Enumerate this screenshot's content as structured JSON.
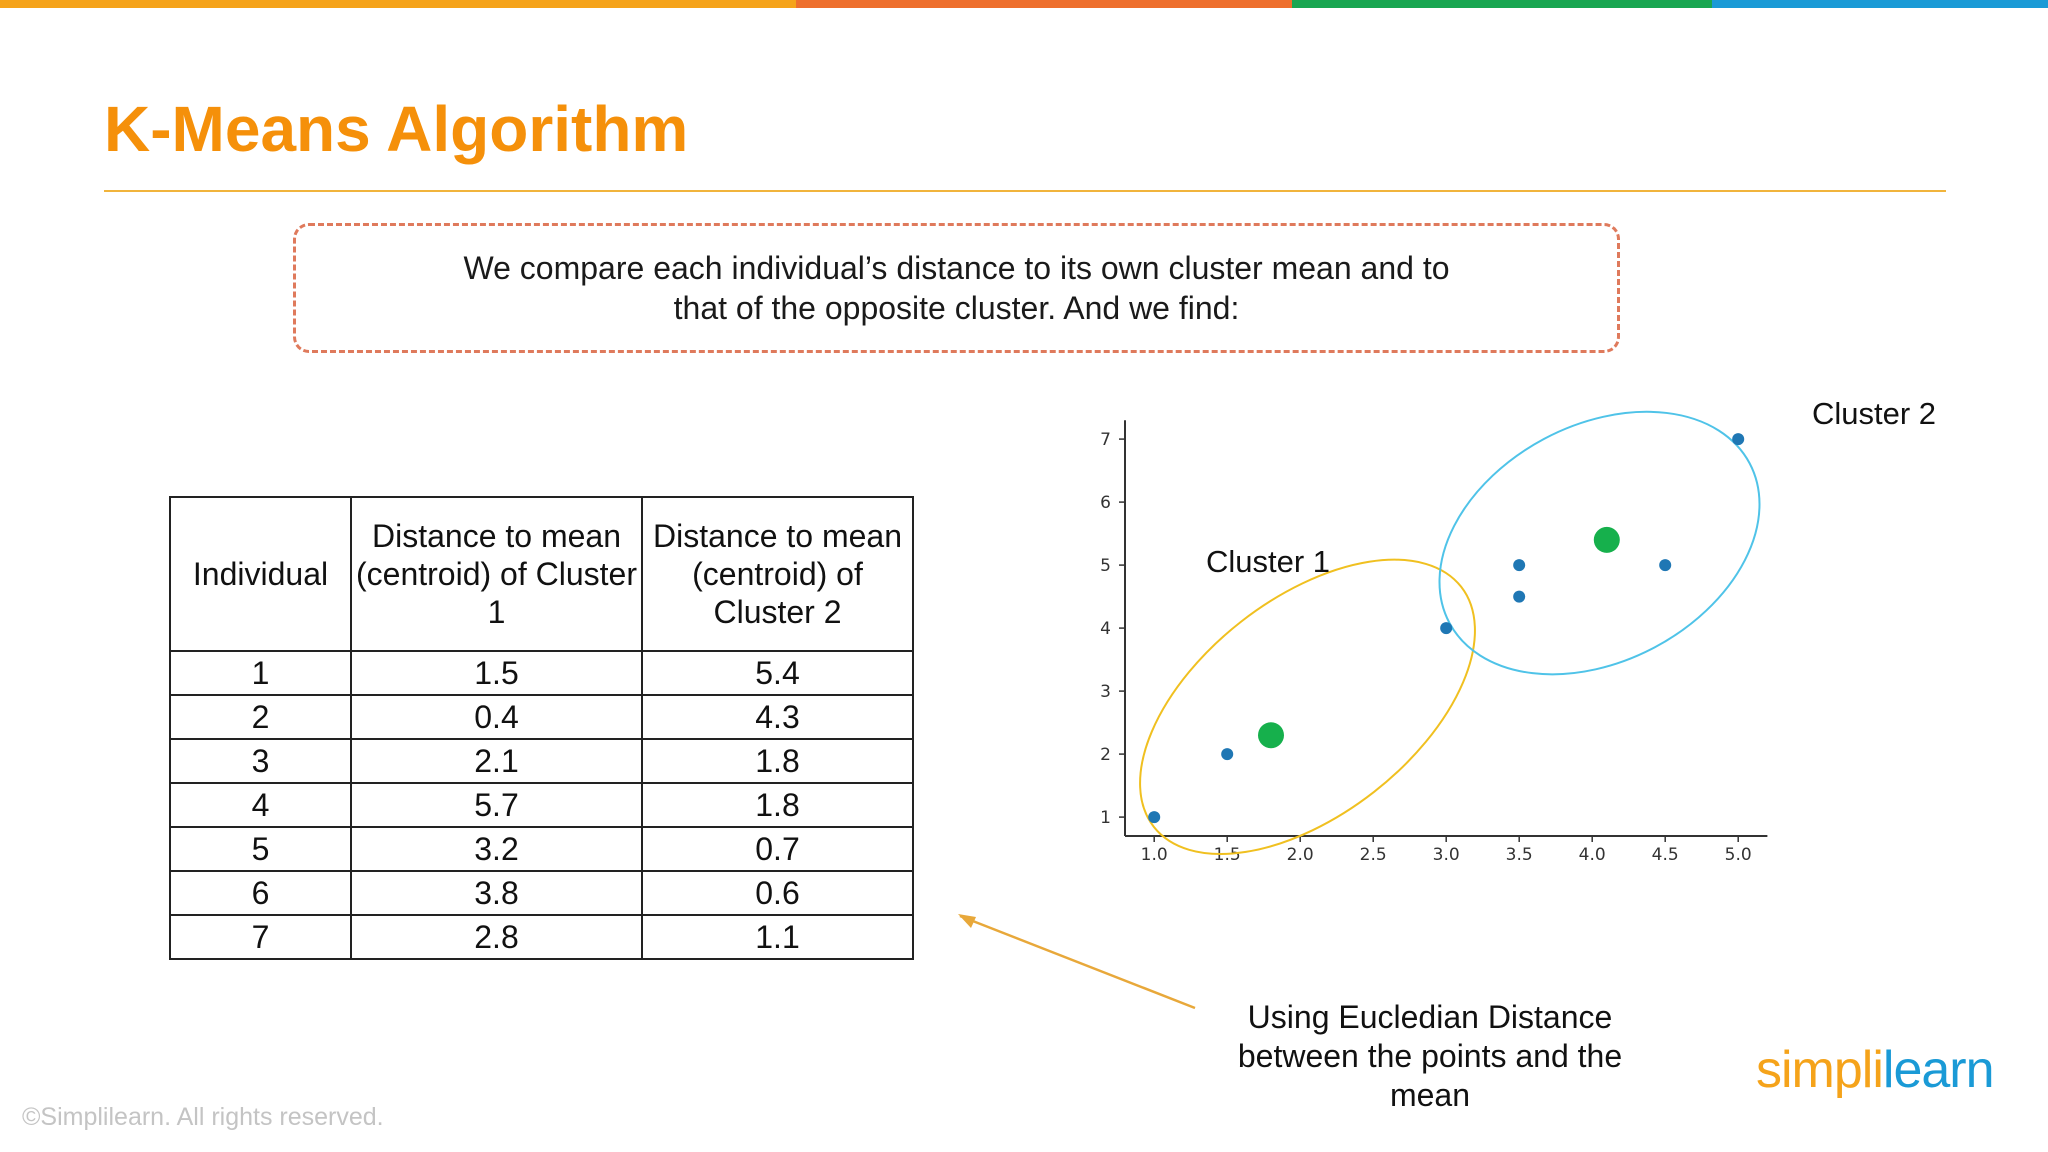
{
  "colors": {
    "accent": "#f5900a",
    "top_bar": [
      "#f5a31a",
      "#ee6f2d",
      "#19a651",
      "#1a9ad6"
    ],
    "callout_border": "#df7a5c",
    "cluster1_ring": "#f0c020",
    "cluster2_ring": "#4fc3e8",
    "point": "#1f77b4",
    "centroid": "#16b04c",
    "arrow": "#e8a83a"
  },
  "title": "K-Means Algorithm",
  "callout": {
    "text": "We compare each individual’s distance to its own cluster mean and to that of the opposite cluster. And we find:"
  },
  "table": {
    "headers": [
      "Individual",
      "Distance to mean (centroid) of Cluster 1",
      "Distance to mean (centroid) of Cluster 2"
    ],
    "rows": [
      [
        "1",
        "1.5",
        "5.4"
      ],
      [
        "2",
        "0.4",
        "4.3"
      ],
      [
        "3",
        "2.1",
        "1.8"
      ],
      [
        "4",
        "5.7",
        "1.8"
      ],
      [
        "5",
        "3.2",
        "0.7"
      ],
      [
        "6",
        "3.8",
        "0.6"
      ],
      [
        "7",
        "2.8",
        "1.1"
      ]
    ]
  },
  "chart_data": {
    "type": "scatter",
    "title": "",
    "xlabel": "",
    "ylabel": "",
    "xlim": [
      0.8,
      5.2
    ],
    "ylim": [
      0.7,
      7.3
    ],
    "x_ticks": [
      "1.0",
      "1.5",
      "2.0",
      "2.5",
      "3.0",
      "3.5",
      "4.0",
      "4.5",
      "5.0"
    ],
    "y_ticks": [
      "1",
      "2",
      "3",
      "4",
      "5",
      "6",
      "7"
    ],
    "points": [
      {
        "x": 1.0,
        "y": 1.0
      },
      {
        "x": 1.5,
        "y": 2.0
      },
      {
        "x": 3.0,
        "y": 4.0
      },
      {
        "x": 3.5,
        "y": 4.5
      },
      {
        "x": 3.5,
        "y": 5.0
      },
      {
        "x": 4.5,
        "y": 5.0
      },
      {
        "x": 5.0,
        "y": 7.0
      }
    ],
    "centroids": [
      {
        "x": 1.8,
        "y": 2.3
      },
      {
        "x": 4.1,
        "y": 5.4
      }
    ],
    "clusters": [
      {
        "label": "Cluster 1",
        "ring": "yellow"
      },
      {
        "label": "Cluster 2",
        "ring": "blue"
      }
    ],
    "grid": false
  },
  "note": "Using Eucledian Distance between the points and the mean",
  "footer": {
    "copyright": "©Simplilearn. All rights reserved.",
    "logo_part1": "simpl",
    "logo_bar": "i",
    "logo_part2": "learn"
  }
}
